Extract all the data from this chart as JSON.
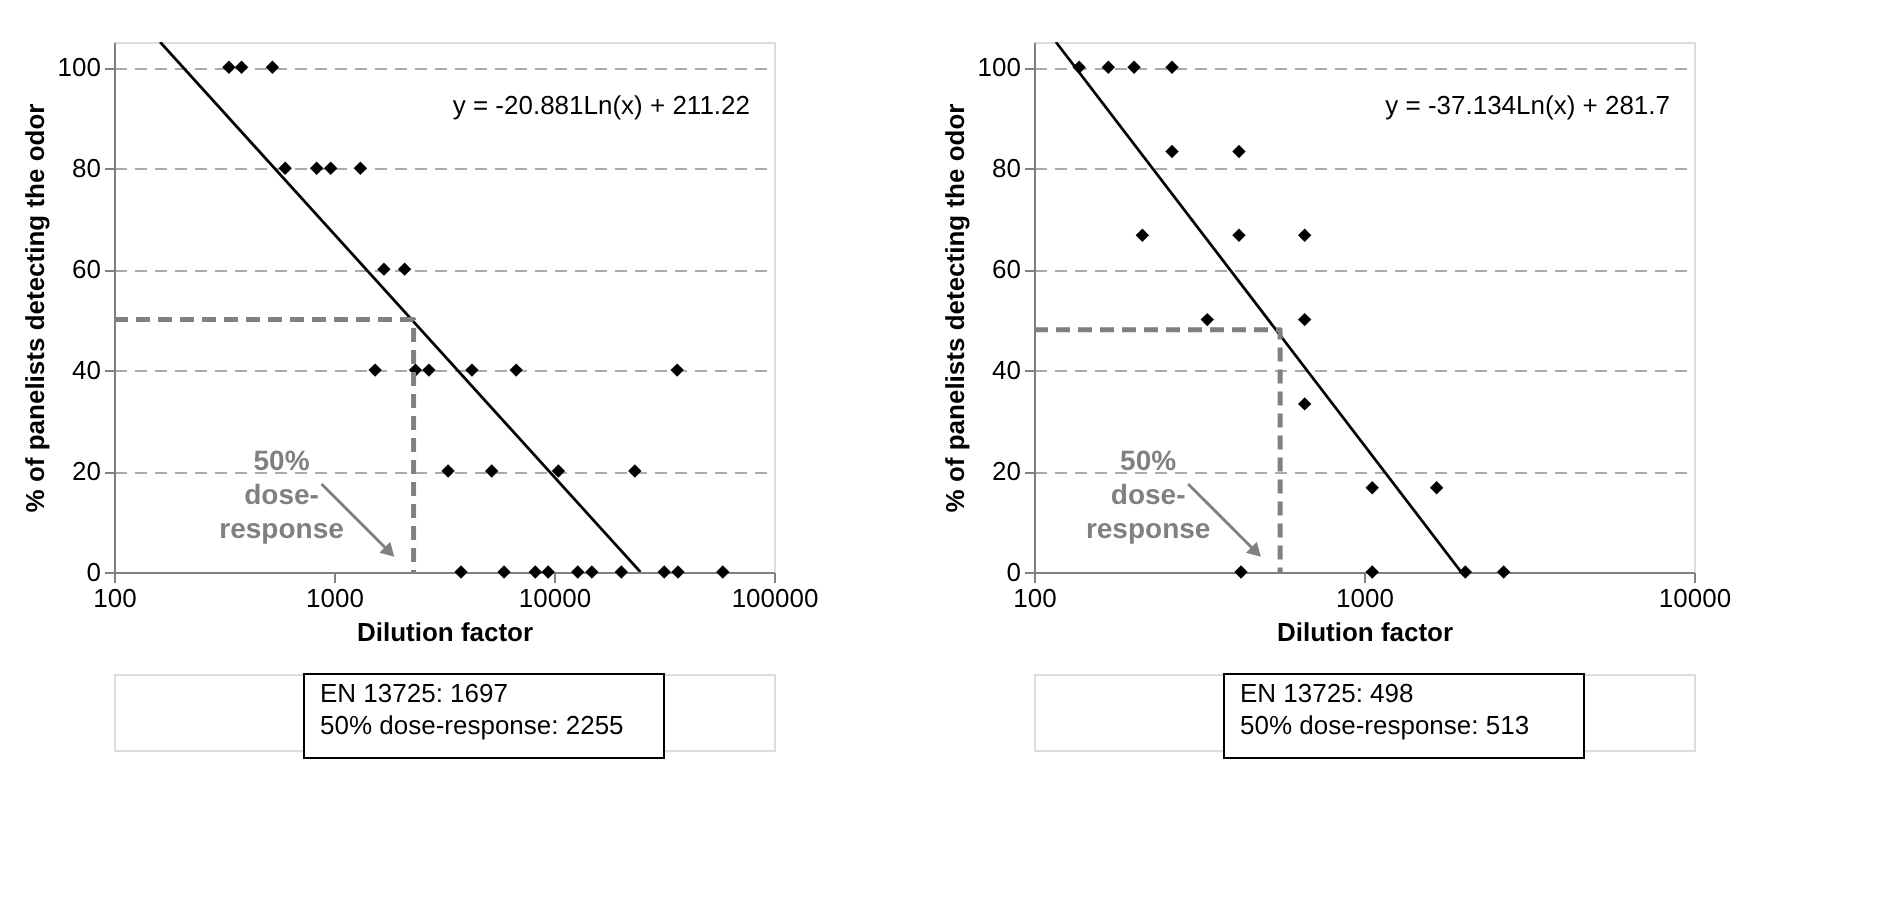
{
  "chart_data": [
    {
      "type": "scatter",
      "xlabel": "Dilution factor",
      "ylabel": "% of panelists detecting the odor",
      "log": "x",
      "xlim": [
        100,
        100000
      ],
      "xticks": [
        100,
        1000,
        10000,
        100000
      ],
      "ylim": [
        0,
        105
      ],
      "yticks": [
        0,
        20,
        40,
        60,
        80,
        100
      ],
      "grid": "y",
      "series": [
        {
          "marker": "diamond",
          "color": "#000000",
          "x": [
            333,
            380,
            525,
            600,
            834,
            966,
            1318,
            1687,
            2094,
            1538,
            2345,
            2700,
            4236,
            6730,
            36300,
            3300,
            5210,
            10470,
            23300,
            3780,
            5930,
            8220,
            9410,
            12820,
            14860,
            20230,
            31700,
            36600,
            58500
          ],
          "values": [
            100,
            100,
            100,
            80,
            80,
            80,
            80,
            60,
            60,
            40,
            40,
            40,
            40,
            40,
            40,
            20,
            20,
            20,
            20,
            0,
            0,
            0,
            0,
            0,
            0,
            0,
            0,
            0,
            0
          ]
        },
        {
          "type": "line",
          "line_style": "solid",
          "color": "#000000",
          "x": [
            162,
            24700
          ],
          "values": [
            105,
            0
          ]
        },
        {
          "type": "line",
          "line_style": "dashed",
          "color": "#808080",
          "x": [
            100,
            2300,
            2300
          ],
          "values": [
            50,
            50,
            0
          ]
        }
      ],
      "annotations": [
        "y = -20.881Ln(x) + 211.22",
        "50% dose-response",
        "EN 13725: 1697",
        "50% dose-response: 2255"
      ]
    },
    {
      "type": "scatter",
      "xlabel": "Dilution factor",
      "ylabel": "% of panelists detecting the odor",
      "log": "x",
      "xlim": [
        100,
        10000
      ],
      "xticks": [
        100,
        1000,
        10000
      ],
      "ylim": [
        0,
        105
      ],
      "yticks": [
        0,
        20,
        40,
        60,
        80,
        100
      ],
      "grid": "y",
      "series": [
        {
          "marker": "diamond",
          "color": "#000000",
          "x": [
            137,
            168,
            201,
            262,
            262,
            418,
            213,
            418,
            661,
            335,
            661,
            661,
            1059,
            1660,
            424,
            1059,
            2028,
            2650
          ],
          "values": [
            100,
            100,
            100,
            100,
            83.3,
            83.3,
            66.7,
            66.7,
            66.7,
            50,
            50,
            33.3,
            16.7,
            16.7,
            0,
            0,
            0,
            0
          ]
        },
        {
          "type": "line",
          "line_style": "solid",
          "color": "#000000",
          "x": [
            116.5,
            1970
          ],
          "values": [
            105,
            0
          ]
        },
        {
          "type": "line",
          "line_style": "dashed",
          "color": "#808080",
          "x": [
            100,
            557,
            557
          ],
          "values": [
            48,
            48,
            0
          ]
        }
      ],
      "annotations": [
        "y = -37.134Ln(x) + 281.7",
        "50% dose-response",
        "EN 13725: 498",
        "50% dose-response: 513"
      ]
    }
  ]
}
